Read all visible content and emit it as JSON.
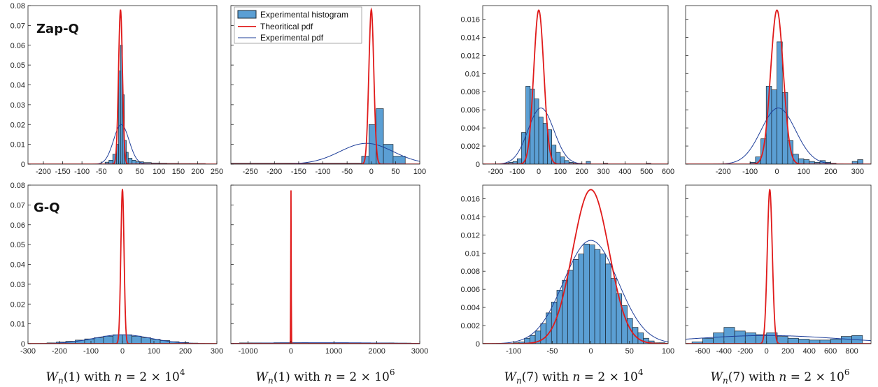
{
  "colors": {
    "bar_fill": "#5b9fd4",
    "bar_stroke": "#1a2733",
    "theoretical": "#e01b1b",
    "experimental": "#1f3f9a"
  },
  "legend": {
    "hist": "Experimental histogram",
    "theory": "Theoritical pdf",
    "exp": "Experimental pdf"
  },
  "row_labels": [
    "Zap-Q",
    "G-Q"
  ],
  "captions": [
    {
      "pre": "W",
      "sub": "n",
      "arg": "(1)",
      "mid": " with ",
      "n": "n",
      "eq": " = 2 × 10",
      "exp": "4"
    },
    {
      "pre": "W",
      "sub": "n",
      "arg": "(1)",
      "mid": " with ",
      "n": "n",
      "eq": " = 2 × 10",
      "exp": "6"
    },
    {
      "pre": "W",
      "sub": "n",
      "arg": "(7)",
      "mid": " with ",
      "n": "n",
      "eq": " = 2 × 10",
      "exp": "4"
    },
    {
      "pre": "W",
      "sub": "n",
      "arg": "(7)",
      "mid": " with ",
      "n": "n",
      "eq": " = 2 × 10",
      "exp": "6"
    }
  ],
  "chart_data": [
    {
      "type": "bar",
      "row": 0,
      "col": 0,
      "label": "Zap-Q",
      "xlim": [
        -240,
        250
      ],
      "ylim": [
        0,
        0.08
      ],
      "xticks": [
        -200,
        -150,
        -100,
        -50,
        0,
        50,
        100,
        150,
        200,
        250
      ],
      "yticks": [
        0,
        0.01,
        0.02,
        0.03,
        0.04,
        0.05,
        0.06,
        0.07,
        0.08
      ],
      "ytick_labels": [
        "0",
        "0.01",
        "0.02",
        "0.03",
        "0.04",
        "0.05",
        "0.06",
        "0.07",
        "0.08"
      ],
      "show_yticklabels": true,
      "bins": [
        [
          -40,
          -30,
          0.001
        ],
        [
          -30,
          -20,
          0.002
        ],
        [
          -20,
          -10,
          0.005
        ],
        [
          -10,
          -5,
          0.01
        ],
        [
          -5,
          0,
          0.047
        ],
        [
          0,
          5,
          0.06
        ],
        [
          5,
          10,
          0.035
        ],
        [
          10,
          15,
          0.012
        ],
        [
          15,
          20,
          0.006
        ],
        [
          20,
          30,
          0.003
        ],
        [
          30,
          40,
          0.002
        ],
        [
          40,
          60,
          0.0012
        ],
        [
          60,
          80,
          0.0008
        ],
        [
          80,
          100,
          0.0006
        ],
        [
          100,
          120,
          0.0005
        ],
        [
          120,
          150,
          0.0004
        ],
        [
          150,
          180,
          0.0003
        ],
        [
          180,
          220,
          0.0003
        ]
      ],
      "theory": {
        "mu": 0,
        "sigma": 5.1,
        "amp": 0.078
      },
      "experimental": {
        "mu": 2,
        "sigma": 20,
        "amp": 0.02
      }
    },
    {
      "type": "bar",
      "row": 0,
      "col": 1,
      "legend": true,
      "xlim": [
        -290,
        100
      ],
      "ylim": [
        0,
        0.08
      ],
      "xticks": [
        -250,
        -200,
        -150,
        -100,
        -50,
        0,
        50,
        100
      ],
      "yticks": [
        0,
        0.01,
        0.02,
        0.03,
        0.04,
        0.05,
        0.06,
        0.07,
        0.08
      ],
      "show_yticklabels": false,
      "bins": [
        [
          -290,
          -20,
          0.0005
        ],
        [
          -20,
          -5,
          0.004
        ],
        [
          -5,
          10,
          0.02
        ],
        [
          10,
          25,
          0.028
        ],
        [
          25,
          45,
          0.01
        ],
        [
          45,
          70,
          0.004
        ]
      ],
      "theory": {
        "mu": 0,
        "sigma": 5.1,
        "amp": 0.078
      },
      "experimental": {
        "mu": -10,
        "sigma": 55,
        "amp": 0.0105
      }
    },
    {
      "type": "bar",
      "row": 0,
      "col": 2,
      "xlim": [
        -260,
        600
      ],
      "ylim": [
        0,
        0.0175
      ],
      "xticks": [
        -200,
        -100,
        0,
        100,
        200,
        300,
        400,
        500,
        600
      ],
      "yticks": [
        0,
        0.002,
        0.004,
        0.006,
        0.008,
        0.01,
        0.012,
        0.014,
        0.016
      ],
      "ytick_labels": [
        "0",
        "0.002",
        "0.004",
        "0.006",
        "0.008",
        "0.01",
        "0.012",
        "0.014",
        "0.016"
      ],
      "show_yticklabels": true,
      "bins": [
        [
          -160,
          -140,
          0.0001
        ],
        [
          -140,
          -120,
          0.0002
        ],
        [
          -120,
          -100,
          0.0003
        ],
        [
          -100,
          -80,
          0.0006
        ],
        [
          -80,
          -60,
          0.0035
        ],
        [
          -60,
          -40,
          0.0086
        ],
        [
          -40,
          -20,
          0.0083
        ],
        [
          -20,
          0,
          0.0072
        ],
        [
          0,
          20,
          0.0052
        ],
        [
          20,
          40,
          0.0045
        ],
        [
          40,
          60,
          0.0038
        ],
        [
          60,
          80,
          0.0021
        ],
        [
          80,
          100,
          0.0013
        ],
        [
          100,
          120,
          0.0008
        ],
        [
          120,
          140,
          0.0004
        ],
        [
          140,
          160,
          0.0002
        ],
        [
          160,
          180,
          0.0001
        ],
        [
          180,
          200,
          0.0001
        ],
        [
          220,
          240,
          0.0003
        ],
        [
          300,
          320,
          0.0001
        ],
        [
          500,
          520,
          0.0001
        ]
      ],
      "theory": {
        "mu": 0,
        "sigma": 23.5,
        "amp": 0.017
      },
      "experimental": {
        "mu": 10,
        "sigma": 60,
        "amp": 0.0062
      }
    },
    {
      "type": "bar",
      "row": 0,
      "col": 3,
      "xlim": [
        -340,
        350
      ],
      "ylim": [
        0,
        0.0175
      ],
      "xticks": [
        -200,
        -100,
        0,
        100,
        200,
        300
      ],
      "yticks": [
        0,
        0.002,
        0.004,
        0.006,
        0.008,
        0.01,
        0.012,
        0.014,
        0.016
      ],
      "show_yticklabels": false,
      "bins": [
        [
          -100,
          -80,
          0.0002
        ],
        [
          -80,
          -60,
          0.0008
        ],
        [
          -60,
          -40,
          0.0028
        ],
        [
          -40,
          -20,
          0.0086
        ],
        [
          -20,
          0,
          0.0082
        ],
        [
          0,
          20,
          0.0135
        ],
        [
          20,
          40,
          0.0079
        ],
        [
          40,
          60,
          0.0026
        ],
        [
          60,
          80,
          0.0011
        ],
        [
          80,
          100,
          0.0006
        ],
        [
          100,
          120,
          0.0005
        ],
        [
          120,
          140,
          0.0003
        ],
        [
          140,
          160,
          0.0002
        ],
        [
          160,
          180,
          0.0004
        ],
        [
          180,
          200,
          0.0002
        ],
        [
          200,
          220,
          0.0001
        ],
        [
          280,
          300,
          0.0003
        ],
        [
          300,
          320,
          0.0005
        ]
      ],
      "theory": {
        "mu": 0,
        "sigma": 23.5,
        "amp": 0.017
      },
      "experimental": {
        "mu": 5,
        "sigma": 64,
        "amp": 0.0062
      }
    },
    {
      "type": "bar",
      "row": 1,
      "col": 0,
      "label": "G-Q",
      "xlim": [
        -300,
        300
      ],
      "ylim": [
        0,
        0.08
      ],
      "xticks": [
        -300,
        -200,
        -100,
        0,
        100,
        200,
        300
      ],
      "yticks": [
        0,
        0.01,
        0.02,
        0.03,
        0.04,
        0.05,
        0.06,
        0.07,
        0.08
      ],
      "ytick_labels": [
        "0",
        "0.01",
        "0.02",
        "0.03",
        "0.04",
        "0.05",
        "0.06",
        "0.07",
        "0.08"
      ],
      "show_yticklabels": true,
      "bins": [
        [
          -240,
          -210,
          0.0004
        ],
        [
          -210,
          -180,
          0.0008
        ],
        [
          -180,
          -150,
          0.0012
        ],
        [
          -150,
          -120,
          0.0018
        ],
        [
          -120,
          -90,
          0.0024
        ],
        [
          -90,
          -60,
          0.003
        ],
        [
          -60,
          -30,
          0.0038
        ],
        [
          -30,
          0,
          0.0045
        ],
        [
          0,
          30,
          0.0045
        ],
        [
          30,
          60,
          0.0038
        ],
        [
          60,
          90,
          0.003
        ],
        [
          90,
          120,
          0.0022
        ],
        [
          120,
          150,
          0.0016
        ],
        [
          150,
          180,
          0.001
        ],
        [
          180,
          210,
          0.0006
        ],
        [
          210,
          240,
          0.0003
        ]
      ],
      "theory": {
        "mu": 0,
        "sigma": 5.1,
        "amp": 0.078
      },
      "experimental": {
        "mu": 0,
        "sigma": 90,
        "amp": 0.0045
      }
    },
    {
      "type": "bar",
      "row": 1,
      "col": 1,
      "xlim": [
        -1400,
        3000
      ],
      "ylim": [
        0,
        0.08
      ],
      "xticks": [
        -1000,
        0,
        1000,
        2000,
        3000
      ],
      "yticks": [
        0,
        0.01,
        0.02,
        0.03,
        0.04,
        0.05,
        0.06,
        0.07,
        0.08
      ],
      "show_yticklabels": false,
      "bins": [
        [
          -1200,
          -800,
          0.0004
        ],
        [
          -800,
          -400,
          0.0004
        ],
        [
          -400,
          0,
          0.0005
        ],
        [
          0,
          400,
          0.0005
        ],
        [
          400,
          800,
          0.0004
        ],
        [
          800,
          1200,
          0.0004
        ],
        [
          1200,
          1600,
          0.0004
        ],
        [
          1600,
          2000,
          0.0004
        ],
        [
          2000,
          2400,
          0.0004
        ],
        [
          2400,
          2800,
          0.0003
        ]
      ],
      "theory": {
        "mu": 0,
        "sigma": 5.1,
        "amp": 0.078
      },
      "experimental": {
        "mu": 800,
        "sigma": 1400,
        "amp": 0.0005
      }
    },
    {
      "type": "bar",
      "row": 1,
      "col": 2,
      "xlim": [
        -140,
        100
      ],
      "ylim": [
        0,
        0.0175
      ],
      "xticks": [
        -100,
        -50,
        0,
        50,
        100
      ],
      "yticks": [
        0,
        0.002,
        0.004,
        0.006,
        0.008,
        0.01,
        0.012,
        0.014,
        0.016
      ],
      "ytick_labels": [
        "0",
        "0.002",
        "0.004",
        "0.006",
        "0.008",
        "0.01",
        "0.012",
        "0.014",
        "0.016"
      ],
      "show_yticklabels": true,
      "bins": [
        [
          -100,
          -93,
          0.0001
        ],
        [
          -93,
          -86,
          0.0002
        ],
        [
          -86,
          -79,
          0.0006
        ],
        [
          -79,
          -72,
          0.0009
        ],
        [
          -72,
          -65,
          0.0014
        ],
        [
          -65,
          -58,
          0.0022
        ],
        [
          -58,
          -51,
          0.0034
        ],
        [
          -51,
          -44,
          0.0046
        ],
        [
          -44,
          -37,
          0.0059
        ],
        [
          -37,
          -30,
          0.007
        ],
        [
          -30,
          -23,
          0.0081
        ],
        [
          -23,
          -16,
          0.0093
        ],
        [
          -16,
          -9,
          0.0099
        ],
        [
          -9,
          -2,
          0.011
        ],
        [
          -2,
          5,
          0.0109
        ],
        [
          5,
          12,
          0.0104
        ],
        [
          12,
          19,
          0.0099
        ],
        [
          19,
          26,
          0.0088
        ],
        [
          26,
          33,
          0.0072
        ],
        [
          33,
          40,
          0.0055
        ],
        [
          40,
          47,
          0.0042
        ],
        [
          47,
          54,
          0.0028
        ],
        [
          54,
          61,
          0.0018
        ],
        [
          61,
          68,
          0.0012
        ],
        [
          68,
          75,
          0.0006
        ],
        [
          75,
          82,
          0.0003
        ],
        [
          82,
          89,
          0.0001
        ],
        [
          89,
          96,
          0.0001
        ]
      ],
      "theory": {
        "mu": 0,
        "sigma": 23.5,
        "amp": 0.017
      },
      "experimental": {
        "mu": 0,
        "sigma": 35,
        "amp": 0.0114
      }
    },
    {
      "type": "bar",
      "row": 1,
      "col": 3,
      "xlim": [
        -760,
        980
      ],
      "ylim": [
        0,
        0.0175
      ],
      "xticks": [
        -600,
        -400,
        -200,
        0,
        200,
        400,
        600,
        800
      ],
      "yticks": [
        0,
        0.002,
        0.004,
        0.006,
        0.008,
        0.01,
        0.012,
        0.014,
        0.016
      ],
      "show_yticklabels": false,
      "bins": [
        [
          -700,
          -600,
          0.0002
        ],
        [
          -600,
          -500,
          0.0006
        ],
        [
          -500,
          -400,
          0.0012
        ],
        [
          -400,
          -300,
          0.0018
        ],
        [
          -300,
          -200,
          0.0014
        ],
        [
          -200,
          -100,
          0.0012
        ],
        [
          -100,
          0,
          0.001
        ],
        [
          0,
          100,
          0.0012
        ],
        [
          100,
          200,
          0.0008
        ],
        [
          200,
          300,
          0.0006
        ],
        [
          300,
          400,
          0.0005
        ],
        [
          400,
          500,
          0.0004
        ],
        [
          500,
          600,
          0.0004
        ],
        [
          600,
          700,
          0.0005
        ],
        [
          700,
          800,
          0.0008
        ],
        [
          800,
          900,
          0.0009
        ]
      ],
      "theory": {
        "mu": 30,
        "sigma": 23.5,
        "amp": 0.017
      },
      "experimental": {
        "mu": 0,
        "sigma": 700,
        "amp": 0.0009
      }
    }
  ]
}
